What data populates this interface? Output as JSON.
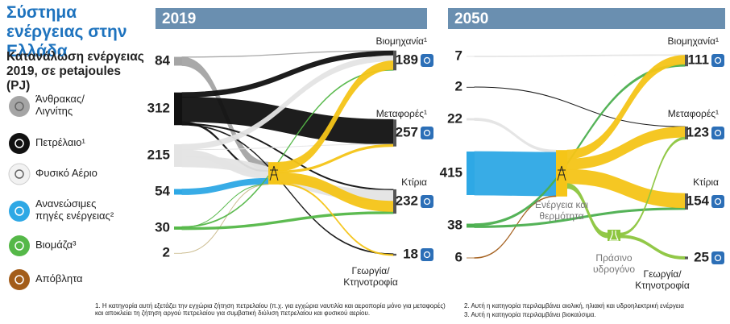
{
  "title": "Σύστημα ενέργειας στην Ελλάδα",
  "subtitle": "Κατανάλωση ενέργειας 2019, σε petajoules (PJ)",
  "legend": [
    {
      "label": "Άνθρακας/ Λιγνίτης",
      "color": "#a5a5a5"
    },
    {
      "label": "Πετρέλαιο¹",
      "color": "#111111"
    },
    {
      "label": "Φυσικό Αέριο",
      "color": "#e4e4e4"
    },
    {
      "label": "Ανανεώσιμες πηγές ενέργειας²",
      "color": "#2ea8e5"
    },
    {
      "label": "Βιομάζα³",
      "color": "#55b848"
    },
    {
      "label": "Απόβλητα",
      "color": "#a35d1a"
    }
  ],
  "footnotes": [
    "1. Η κατηγορία αυτή εξετάζει την εγχώρια ζήτηση πετρελαίου (π.χ. για εγχώρια ναυτιλία και αεροπορία μόνο για μεταφορές) και αποκλείει τη ζήτηση αργού πετρελαίου για συμβατική διύλιση πετρελαίου και φυσικού αερίου.",
    "2. Αυτή η κατηγορία περιλαμβάνει αιολική, ηλιακή και υδροηλεκτρική ενέργεια",
    "3. Αυτή η κατηγορία περιλαμβάνει βιοκαύσιμα."
  ],
  "chart_data": [
    {
      "type": "sankey",
      "title": "2019",
      "sources": {
        "values": [
          84,
          312,
          215,
          54,
          30,
          2
        ],
        "colors": [
          "#a5a5a5",
          "#111111",
          "#e4e4e4",
          "#2ea8e5",
          "#55b848",
          "#c9b98a"
        ]
      },
      "targets": {
        "categories": [
          "Βιομηχανία¹",
          "Μεταφορές¹",
          "Κτίρια",
          "Γεωργία/ Κτηνοτροφία"
        ],
        "values": [
          189,
          257,
          232,
          18
        ]
      },
      "to_hub": [
        80,
        15,
        60,
        54,
        2,
        2
      ],
      "direct": [
        [
          4,
          0,
          0,
          0
        ],
        [
          45,
          235,
          10,
          7
        ],
        [
          50,
          2,
          103,
          0
        ],
        [
          0,
          0,
          0,
          0
        ],
        [
          8,
          0,
          20,
          0
        ],
        [
          0,
          0,
          0,
          0
        ]
      ],
      "from_hub": [
        82,
        20,
        99,
        11
      ],
      "hub_color": "#f5c518"
    },
    {
      "type": "sankey",
      "title": "2050",
      "sources": {
        "values": [
          7,
          2,
          22,
          415,
          38,
          6
        ],
        "colors": [
          "#e4e4e4",
          "#111111",
          "#e4e4e4",
          "#2ea8e5",
          "#4caf50",
          "#a35d1a"
        ]
      },
      "targets": {
        "categories": [
          "Βιομηχανία¹",
          "Μεταφορές¹",
          "Κτίρια",
          "Γεωργία/ Κτηνοτροφία"
        ],
        "values": [
          111,
          123,
          154,
          25
        ]
      },
      "to_hub": [
        0,
        0,
        22,
        415,
        0,
        6
      ],
      "direct": [
        [
          7,
          0,
          0,
          0
        ],
        [
          0,
          2,
          0,
          0
        ],
        [
          0,
          0,
          0,
          0
        ],
        [
          0,
          0,
          0,
          0
        ],
        [
          20,
          0,
          18,
          0
        ],
        [
          0,
          0,
          0,
          0
        ]
      ],
      "from_hub": [
        84,
        100,
        136,
        0
      ],
      "hub_color": "#f5c518",
      "hub_label": "Ενέργεια και θερμότητα",
      "hydrogen": {
        "label": "Πράσινο υδρογόνο",
        "color": "#8dc63f",
        "from_hub": 46,
        "to_targets": [
          0,
          21,
          0,
          25
        ]
      }
    }
  ]
}
